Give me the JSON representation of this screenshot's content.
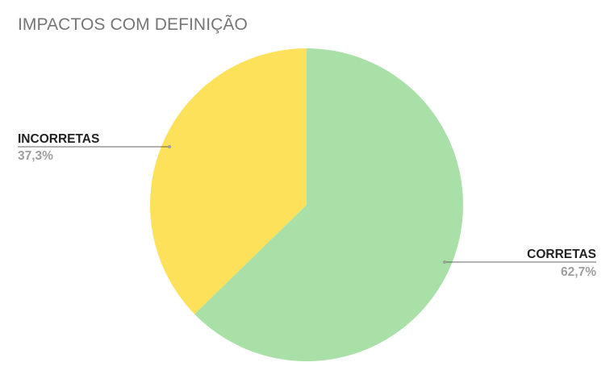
{
  "chart_data": {
    "type": "pie",
    "title": "IMPACTOS COM DEFINIÇÃO",
    "slices": [
      {
        "label": "CORRETAS",
        "value": 62.7,
        "percent_label": "62,7%",
        "color": "#a8e0a7"
      },
      {
        "label": "INCORRETAS",
        "value": 37.3,
        "percent_label": "37,3%",
        "color": "#fde15a"
      }
    ],
    "start": "12 o'clock",
    "direction": "clockwise",
    "legend": "callout labels beside slices"
  }
}
